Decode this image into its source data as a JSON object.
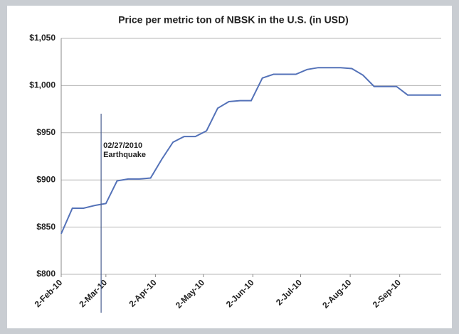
{
  "chart_data": {
    "type": "line",
    "title": "Price per metric ton of NBSK in the U.S. (in USD)",
    "x": [
      "2010-02-02",
      "2010-02-09",
      "2010-02-16",
      "2010-02-23",
      "2010-03-02",
      "2010-03-09",
      "2010-03-16",
      "2010-03-23",
      "2010-03-30",
      "2010-04-06",
      "2010-04-13",
      "2010-04-20",
      "2010-04-27",
      "2010-05-04",
      "2010-05-11",
      "2010-05-18",
      "2010-05-25",
      "2010-06-01",
      "2010-06-08",
      "2010-06-15",
      "2010-06-22",
      "2010-06-29",
      "2010-07-06",
      "2010-07-13",
      "2010-07-20",
      "2010-07-27",
      "2010-08-03",
      "2010-08-10",
      "2010-08-17",
      "2010-08-24",
      "2010-08-31",
      "2010-09-07",
      "2010-09-14",
      "2010-09-21",
      "2010-09-28"
    ],
    "series": [
      {
        "name": "NBSK",
        "color": "#5472b8",
        "values": [
          843,
          870,
          870,
          873,
          875,
          899,
          901,
          901,
          902,
          922,
          940,
          946,
          946,
          952,
          976,
          983,
          984,
          984,
          1008,
          1012,
          1012,
          1012,
          1017,
          1019,
          1019,
          1019,
          1018,
          1011,
          999,
          999,
          999,
          990,
          990,
          990,
          990
        ]
      }
    ],
    "xlim": [
      "2010-02-02",
      "2010-09-28"
    ],
    "xticks": [
      {
        "value": "2010-02-02",
        "label": "2-Feb-10"
      },
      {
        "value": "2010-03-02",
        "label": "2-Mar-10"
      },
      {
        "value": "2010-04-02",
        "label": "2-Apr-10"
      },
      {
        "value": "2010-05-02",
        "label": "2-May-10"
      },
      {
        "value": "2010-06-02",
        "label": "2-Jun-10"
      },
      {
        "value": "2010-07-02",
        "label": "2-Jul-10"
      },
      {
        "value": "2010-08-02",
        "label": "2-Aug-10"
      },
      {
        "value": "2010-09-02",
        "label": "2-Sep-10"
      }
    ],
    "ylim": [
      800,
      1050
    ],
    "yticks": [
      {
        "value": 800,
        "label": "$800"
      },
      {
        "value": 850,
        "label": "$850"
      },
      {
        "value": 900,
        "label": "$900"
      },
      {
        "value": 950,
        "label": "$950"
      },
      {
        "value": 1000,
        "label": "$1,000"
      },
      {
        "value": 1050,
        "label": "$1,050"
      }
    ],
    "grid": true,
    "annotation": {
      "date": {
        "value": "2010-02-27",
        "label": "02/27/2010"
      },
      "label": "Earthquake"
    }
  }
}
